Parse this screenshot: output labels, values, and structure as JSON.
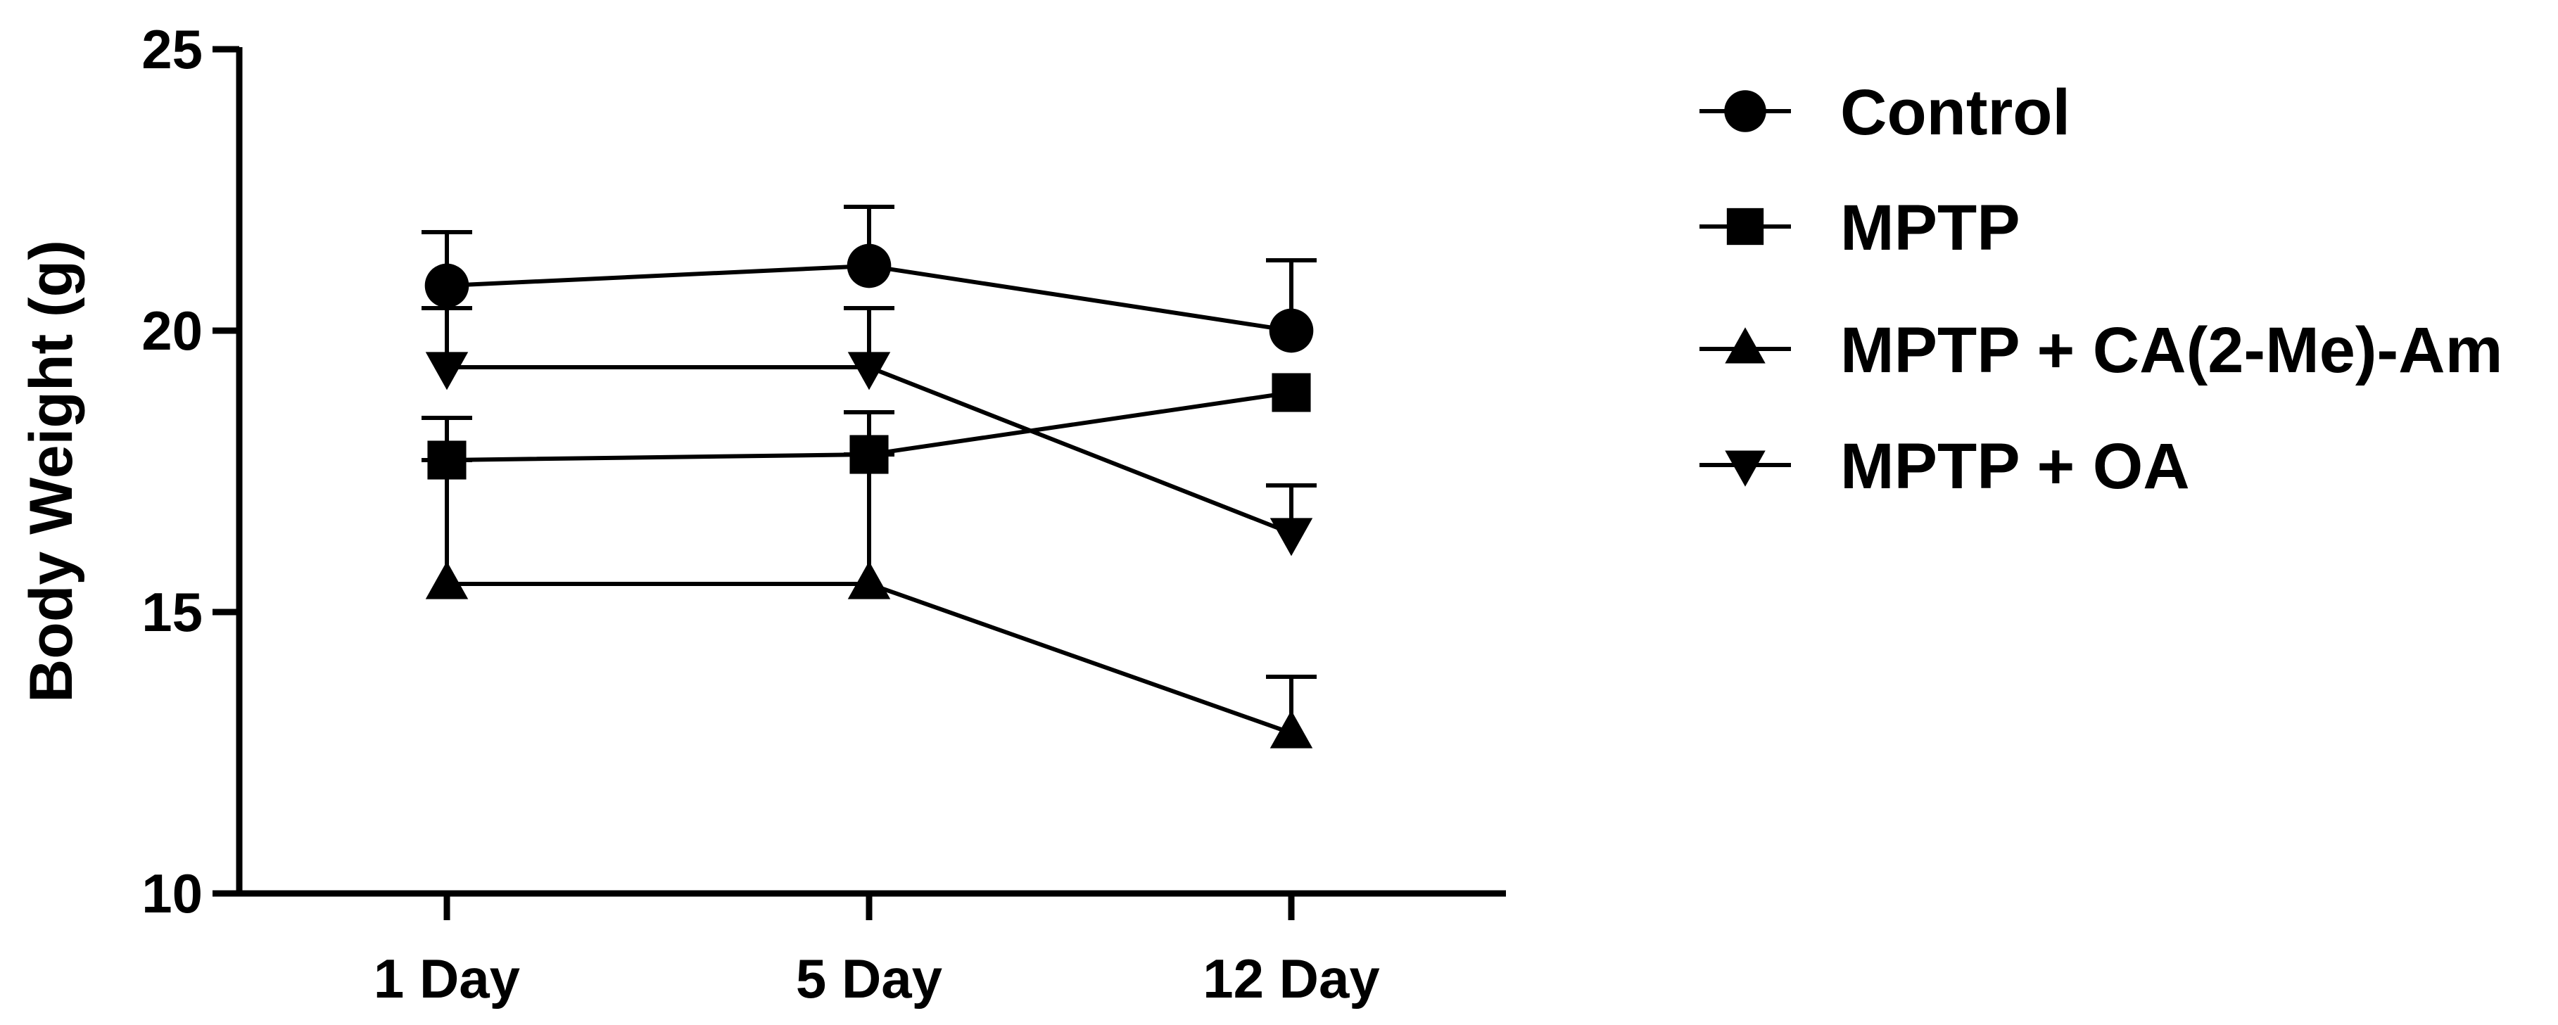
{
  "chart_data": {
    "type": "line",
    "title": "",
    "xlabel": "",
    "ylabel": "Body Weight (g)",
    "categories": [
      "1 Day",
      "5 Day",
      "12 Day"
    ],
    "yticks": [
      "10",
      "15",
      "20",
      "25"
    ],
    "ylim": [
      10,
      25
    ],
    "grid": false,
    "legend_position": "right",
    "series": [
      {
        "name": "Control",
        "marker": "circle",
        "values": [
          20.8,
          21.15,
          20.0
        ],
        "errors": [
          0.95,
          1.05,
          1.25
        ]
      },
      {
        "name": "MPTP",
        "marker": "square",
        "values": [
          17.7,
          17.8,
          18.9
        ],
        "errors": [
          0.75,
          0.75,
          0.0
        ]
      },
      {
        "name": "MPTP + CA(2-Me)-Am",
        "marker": "triangle-up",
        "values": [
          15.5,
          15.5,
          12.85
        ],
        "errors": [
          2.2,
          2.3,
          1.0
        ]
      },
      {
        "name": "MPTP + OA",
        "marker": "triangle-down",
        "values": [
          19.35,
          19.35,
          16.4
        ],
        "errors": [
          1.05,
          1.05,
          0.85
        ]
      }
    ],
    "colors": {
      "line": "#000000",
      "marker": "#000000"
    }
  }
}
